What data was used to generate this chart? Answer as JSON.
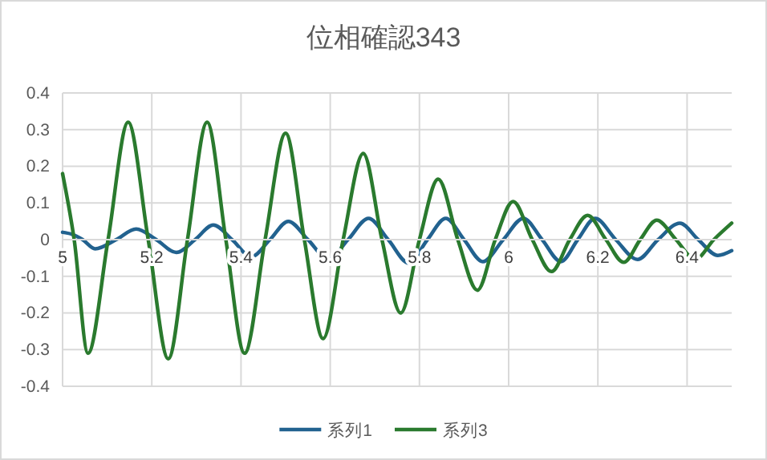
{
  "chart_data": {
    "type": "line",
    "title": "位相確認343",
    "xlim": [
      5,
      6.5
    ],
    "xticks": [
      5,
      5.2,
      5.4,
      5.6,
      5.8,
      6,
      6.2,
      6.4
    ],
    "ylim": [
      -0.4,
      0.4
    ],
    "yticks": [
      -0.4,
      -0.3,
      -0.2,
      -0.1,
      0,
      0.1,
      0.2,
      0.3,
      0.4
    ],
    "grid": true,
    "legend": "bottom",
    "marker": "none",
    "line_style": "solid",
    "series": [
      {
        "name": "系列1",
        "color": "#22628f",
        "x": [
          5,
          5.02,
          5.045,
          5.073,
          5.12,
          5.165,
          5.21,
          5.255,
          5.297,
          5.338,
          5.38,
          5.423,
          5.465,
          5.506,
          5.55,
          5.596,
          5.64,
          5.686,
          5.73,
          5.776,
          5.818,
          5.859,
          5.9,
          5.942,
          5.988,
          6.033,
          6.075,
          6.117,
          6.155,
          6.194,
          6.24,
          6.289,
          6.335,
          6.384,
          6.425,
          6.469,
          6.5
        ],
        "values": [
          0.02,
          0.015,
          0,
          -0.025,
          0,
          0.029,
          0,
          -0.035,
          0,
          0.04,
          0,
          -0.047,
          0,
          0.05,
          0,
          -0.054,
          0,
          0.058,
          0,
          -0.064,
          0,
          0.058,
          0,
          -0.06,
          0,
          0.058,
          0,
          -0.06,
          0,
          0.058,
          0,
          -0.054,
          0,
          0.045,
          0,
          -0.043,
          -0.03
        ]
      },
      {
        "name": "系列3",
        "color": "#2a7a2e",
        "x": [
          5,
          5.026,
          5.057,
          5.102,
          5.147,
          5.192,
          5.237,
          5.28,
          5.324,
          5.366,
          5.408,
          5.454,
          5.5,
          5.542,
          5.584,
          5.629,
          5.674,
          5.716,
          5.758,
          5.8,
          5.842,
          5.886,
          5.93,
          5.97,
          6.01,
          6.053,
          6.096,
          6.137,
          6.177,
          6.218,
          6.258,
          6.295,
          6.332,
          6.375,
          6.418,
          6.46,
          6.5
        ],
        "values": [
          0.18,
          0,
          -0.31,
          0,
          0.32,
          0,
          -0.325,
          0,
          0.32,
          0,
          -0.31,
          0,
          0.29,
          0,
          -0.27,
          0,
          0.235,
          0,
          -0.2,
          0,
          0.165,
          0,
          -0.138,
          0,
          0.104,
          0,
          -0.087,
          0,
          0.066,
          0,
          -0.062,
          0,
          0.053,
          0,
          -0.054,
          0,
          0.045
        ]
      }
    ]
  }
}
